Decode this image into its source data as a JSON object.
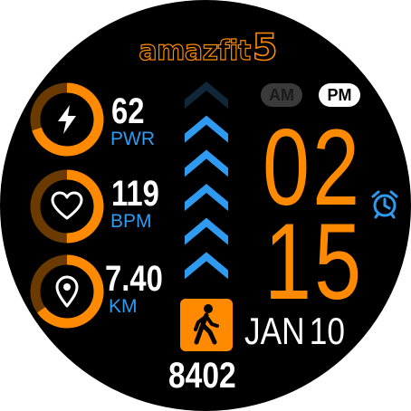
{
  "brand": {
    "text": "amazfit",
    "model": "5"
  },
  "metrics": [
    {
      "id": "power",
      "value": "62",
      "unit": "PWR",
      "icon": "lightning-icon",
      "progress": 0.7
    },
    {
      "id": "heart",
      "value": "119",
      "unit": "BPM",
      "icon": "heart-icon",
      "progress": 0.5
    },
    {
      "id": "distance",
      "value": "7.40",
      "unit": "KM",
      "icon": "location-pin-icon",
      "progress": 0.65
    }
  ],
  "chevrons": {
    "total": 6,
    "active": 5
  },
  "period": {
    "am": "AM",
    "pm": "PM",
    "selected": "PM"
  },
  "time": {
    "hour": "02",
    "minute": "15"
  },
  "alarm": {
    "icon": "alarm-clock-icon"
  },
  "date": {
    "month": "JAN",
    "day": "10"
  },
  "steps": {
    "icon": "walking-person-icon",
    "value": "8402"
  },
  "colors": {
    "accent": "#ff8a00",
    "accent_dim": "#6b3a00",
    "blue": "#2f9bf0",
    "blue_dim": "#10273a",
    "text": "#ffffff",
    "background": "#000000"
  }
}
